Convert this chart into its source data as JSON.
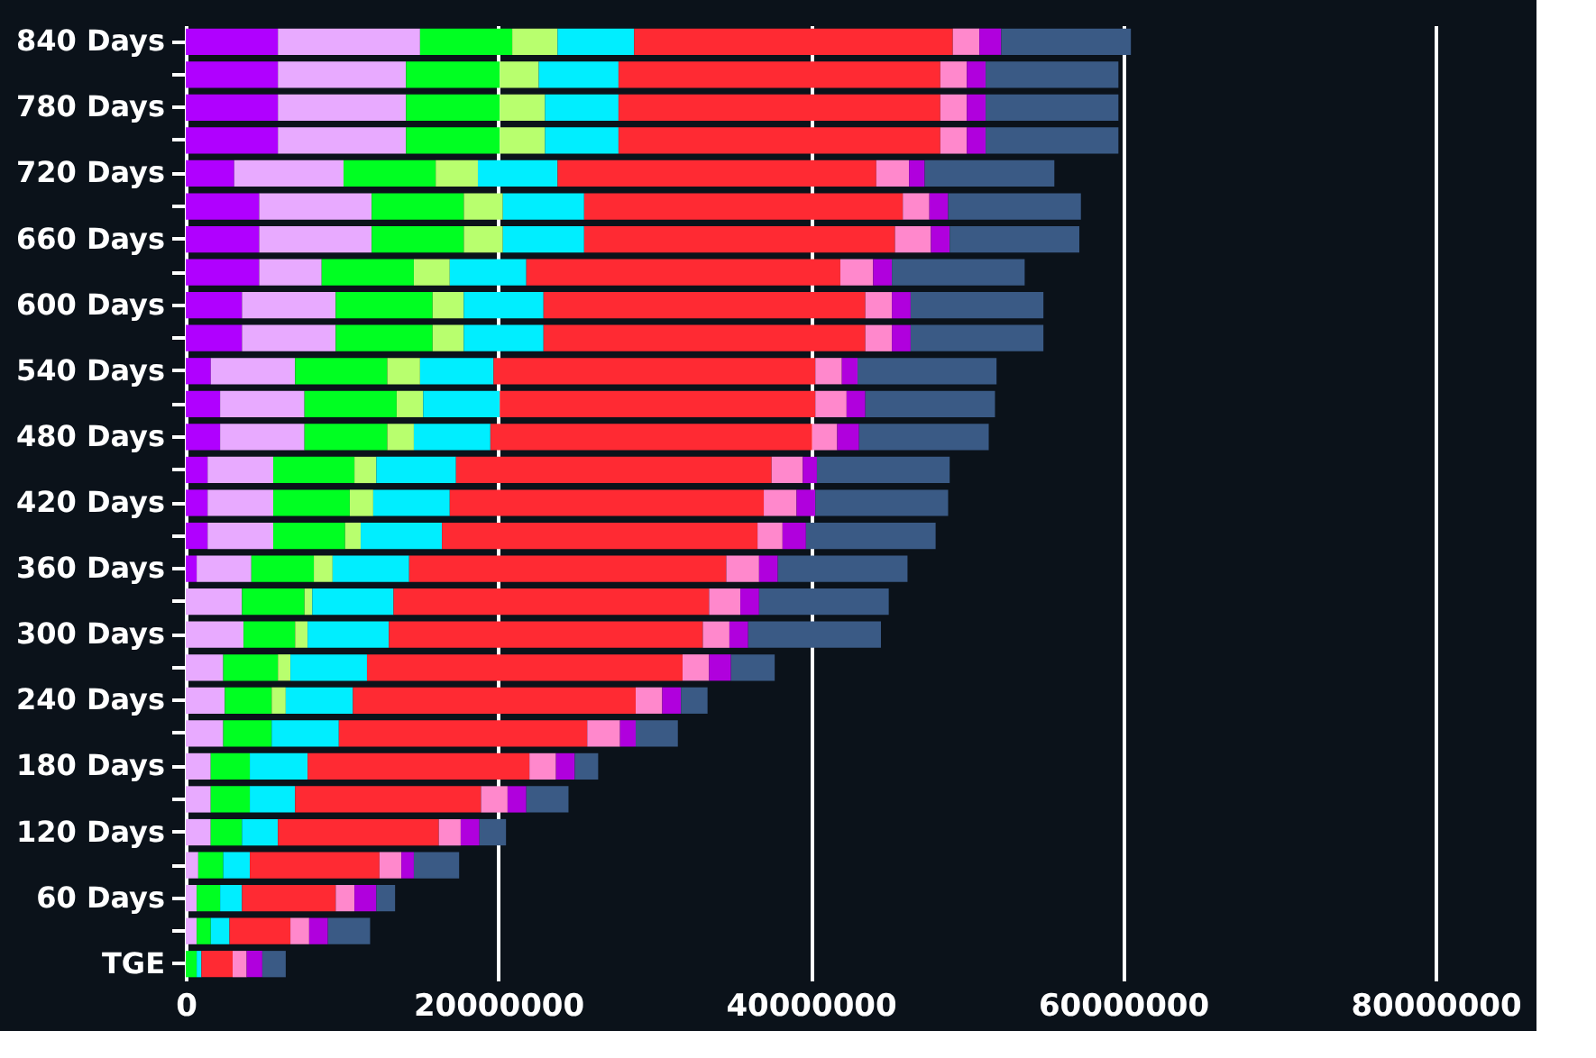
{
  "chart_data": {
    "type": "bar",
    "orientation": "horizontal",
    "stacked": true,
    "categories": [
      "840 Days",
      null,
      "780 Days",
      null,
      "720 Days",
      null,
      "660 Days",
      null,
      "600 Days",
      null,
      "540 Days",
      null,
      "480 Days",
      null,
      "420 Days",
      null,
      "360 Days",
      null,
      "300 Days",
      null,
      "240 Days",
      null,
      "180 Days",
      null,
      "120 Days",
      null,
      "60 Days",
      null,
      "TGE"
    ],
    "xlim": [
      0,
      86000000
    ],
    "xticks": [
      0,
      20000000,
      40000000,
      60000000,
      80000000
    ],
    "grid": "x",
    "legend": false,
    "series": [
      {
        "color": "#b000ff",
        "values": [
          5900000,
          5900000,
          5900000,
          5900000,
          3100000,
          4700000,
          4700000,
          4700000,
          3600000,
          3600000,
          1600000,
          2200000,
          2200000,
          1400000,
          1400000,
          1400000,
          700000,
          null,
          null,
          null,
          null,
          null,
          null,
          null,
          null,
          null,
          null,
          null,
          null
        ]
      },
      {
        "color": "#e8aaff",
        "values": [
          9100000,
          8200000,
          8200000,
          8200000,
          7000000,
          7200000,
          7200000,
          4000000,
          6000000,
          6000000,
          5400000,
          5400000,
          5400000,
          4200000,
          4200000,
          4200000,
          3500000,
          3600000,
          3700000,
          2400000,
          2500000,
          2400000,
          1600000,
          1600000,
          1600000,
          800000,
          700000,
          700000,
          null
        ]
      },
      {
        "color": "#00ff22",
        "values": [
          5900000,
          6000000,
          6000000,
          6000000,
          5900000,
          5900000,
          5900000,
          5900000,
          6200000,
          6200000,
          5900000,
          5900000,
          5300000,
          5200000,
          4900000,
          4600000,
          4000000,
          4000000,
          3300000,
          3500000,
          3000000,
          3100000,
          2500000,
          2500000,
          2000000,
          1600000,
          1500000,
          900000,
          700000
        ]
      },
      {
        "color": "#b8ff6e",
        "values": [
          2900000,
          2500000,
          2900000,
          2900000,
          2700000,
          2500000,
          2500000,
          2300000,
          2000000,
          2000000,
          2100000,
          1700000,
          1700000,
          1400000,
          1500000,
          1000000,
          1200000,
          500000,
          800000,
          800000,
          900000,
          null,
          null,
          null,
          null,
          null,
          null,
          null,
          null
        ]
      },
      {
        "color": "#00eeff",
        "values": [
          4900000,
          5100000,
          4700000,
          4700000,
          5100000,
          5200000,
          5200000,
          4900000,
          5100000,
          5100000,
          4700000,
          4900000,
          4900000,
          5100000,
          4900000,
          5200000,
          4900000,
          5200000,
          5200000,
          4900000,
          4300000,
          4300000,
          3700000,
          2900000,
          2300000,
          1700000,
          1400000,
          1200000,
          300000
        ]
      },
      {
        "color": "#ff2a33",
        "values": [
          20400000,
          20600000,
          20600000,
          20600000,
          20400000,
          20400000,
          19900000,
          20100000,
          20600000,
          20600000,
          20600000,
          20200000,
          20600000,
          20200000,
          20100000,
          20200000,
          20300000,
          20200000,
          20100000,
          20200000,
          18100000,
          15900000,
          14200000,
          11900000,
          10300000,
          8300000,
          6000000,
          3900000,
          2000000
        ]
      },
      {
        "color": "#ff88cc",
        "values": [
          1700000,
          1700000,
          1700000,
          1700000,
          2100000,
          1700000,
          2300000,
          2100000,
          1700000,
          1700000,
          1700000,
          2000000,
          1600000,
          2000000,
          2100000,
          1600000,
          2100000,
          2000000,
          1700000,
          1700000,
          1700000,
          2100000,
          1700000,
          1700000,
          1400000,
          1400000,
          1200000,
          1200000,
          900000
        ]
      },
      {
        "color": "#b000dd",
        "values": [
          1400000,
          1200000,
          1200000,
          1200000,
          1000000,
          1200000,
          1200000,
          1200000,
          1200000,
          1200000,
          1000000,
          1200000,
          1400000,
          900000,
          1200000,
          1500000,
          1200000,
          1200000,
          1200000,
          1400000,
          1200000,
          1000000,
          1200000,
          1200000,
          1200000,
          800000,
          1400000,
          1200000,
          1000000
        ]
      },
      {
        "color": "#3a5a85",
        "values": [
          8300000,
          8500000,
          8500000,
          8500000,
          8300000,
          8500000,
          8300000,
          8500000,
          8500000,
          8500000,
          8900000,
          8300000,
          8300000,
          8500000,
          8500000,
          8300000,
          8300000,
          8300000,
          8500000,
          2800000,
          1700000,
          2700000,
          1500000,
          2700000,
          1700000,
          2900000,
          1200000,
          2700000,
          1500000
        ]
      }
    ]
  }
}
